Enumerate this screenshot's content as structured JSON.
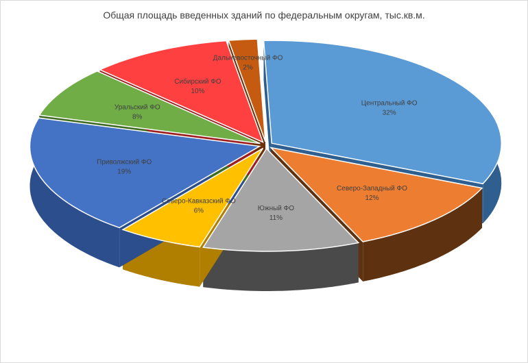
{
  "chart_data": {
    "type": "pie",
    "title": "Общая площадь введенных зданий по федеральным округам, тыс.кв.м.",
    "slices": [
      {
        "name": "Центральный ФО",
        "value": 32,
        "label": "32%",
        "color": "#5B9BD5",
        "side": "#2E5F8F"
      },
      {
        "name": "Северо-Западный ФО",
        "value": 12,
        "label": "12%",
        "color": "#ED7D31",
        "side": "#5E3210"
      },
      {
        "name": "Южный ФО",
        "value": 11,
        "label": "11%",
        "color": "#A5A5A5",
        "side": "#4A4A4A"
      },
      {
        "name": "Северо-Кавказский ФО",
        "value": 6,
        "label": "6%",
        "color": "#FFC000",
        "side": "#B07F00"
      },
      {
        "name": "Приволжский ФО",
        "value": 19,
        "label": "19%",
        "color": "#4472C4",
        "side": "#2C4E8C"
      },
      {
        "name": "Уральский ФО",
        "value": 8,
        "label": "8%",
        "color": "#70AD47",
        "side": "#3F6B22"
      },
      {
        "name": "Сибирский ФО",
        "value": 10,
        "label": "10%",
        "color": "#FF4040",
        "side": "#9E1F1F"
      },
      {
        "name": "Дальневосточный ФО",
        "value": 2,
        "label": "2%",
        "color": "#C55A11",
        "side": "#6E3008"
      }
    ]
  }
}
